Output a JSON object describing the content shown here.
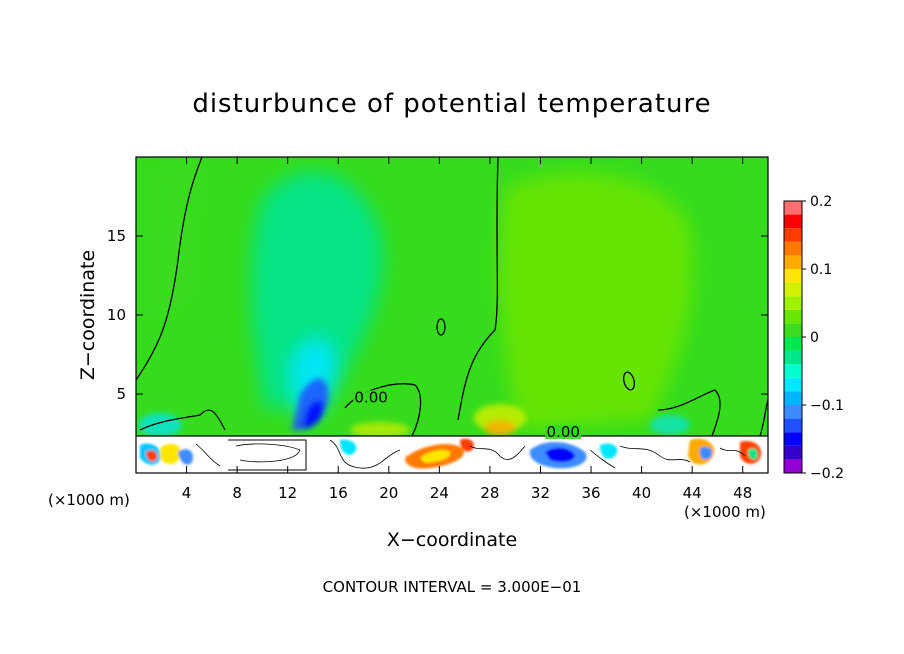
{
  "chart_data": {
    "type": "heatmap",
    "title": "disturbunce of potential temperature",
    "xlabel": "X−coordinate",
    "ylabel": "Z−coordinate",
    "x_unit_label": "(×1000 m)",
    "x_unit_label_right": "(×1000 m)",
    "footer": "CONTOUR INTERVAL = 3.000E−01",
    "xlim": [
      0,
      50
    ],
    "ylim": [
      0,
      20
    ],
    "x_ticks": [
      4,
      8,
      12,
      16,
      20,
      24,
      28,
      32,
      36,
      40,
      44,
      48
    ],
    "x_tick_labels": [
      "4",
      "8",
      "12",
      "16",
      "20",
      "24",
      "28",
      "32",
      "36",
      "40",
      "44",
      "48"
    ],
    "y_ticks": [
      5,
      10,
      15
    ],
    "y_tick_labels": [
      "5",
      "10",
      "15"
    ],
    "colorbar": {
      "range": [
        -0.2,
        0.2
      ],
      "tick_values": [
        0.2,
        0.1,
        0,
        -0.1,
        -0.2
      ],
      "tick_labels": [
        "0.2",
        "0.1",
        "0",
        "−0.1",
        "−0.2"
      ],
      "levels": [
        -0.2,
        -0.18,
        -0.16,
        -0.14,
        -0.12,
        -0.1,
        -0.08,
        -0.06,
        -0.04,
        -0.02,
        0,
        0.02,
        0.04,
        0.06,
        0.08,
        0.1,
        0.12,
        0.14,
        0.16,
        0.18,
        0.2
      ],
      "colors": [
        "#9400d3",
        "#3300cc",
        "#0000ff",
        "#1e50ff",
        "#3c8cff",
        "#00b4ff",
        "#00e6ff",
        "#00ffcc",
        "#00e68c",
        "#00e650",
        "#3cdc1e",
        "#66e600",
        "#a0f000",
        "#d2f000",
        "#ffe600",
        "#ffaa00",
        "#ff7800",
        "#ff3c00",
        "#ff0000",
        "#ff6e6e"
      ]
    },
    "contour_labels": [
      {
        "text": "0.00",
        "x": 18.6,
        "z": 4.6
      },
      {
        "text": "0.00",
        "x": 33.8,
        "z": 2.4
      }
    ],
    "background_fill_level": 0.01
  }
}
